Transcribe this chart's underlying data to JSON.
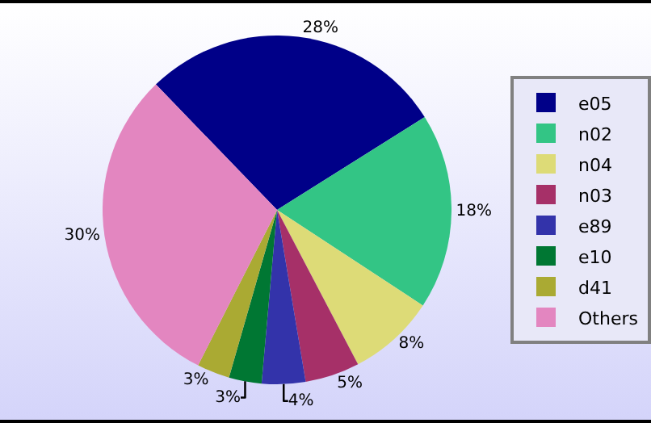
{
  "chart_data": {
    "type": "pie",
    "categories": [
      "e05",
      "n02",
      "n04",
      "n03",
      "e89",
      "e10",
      "d41",
      "Others"
    ],
    "values": [
      28,
      18,
      8,
      5,
      4,
      3,
      3,
      30
    ],
    "value_labels": [
      "28%",
      "18%",
      "8%",
      "5%",
      "4%",
      "3%",
      "3%",
      "30%"
    ],
    "colors": [
      "#000088",
      "#33c585",
      "#dddb77",
      "#a63068",
      "#3333aa",
      "#007733",
      "#aaaa33",
      "#e386c0"
    ],
    "legend": "right"
  }
}
